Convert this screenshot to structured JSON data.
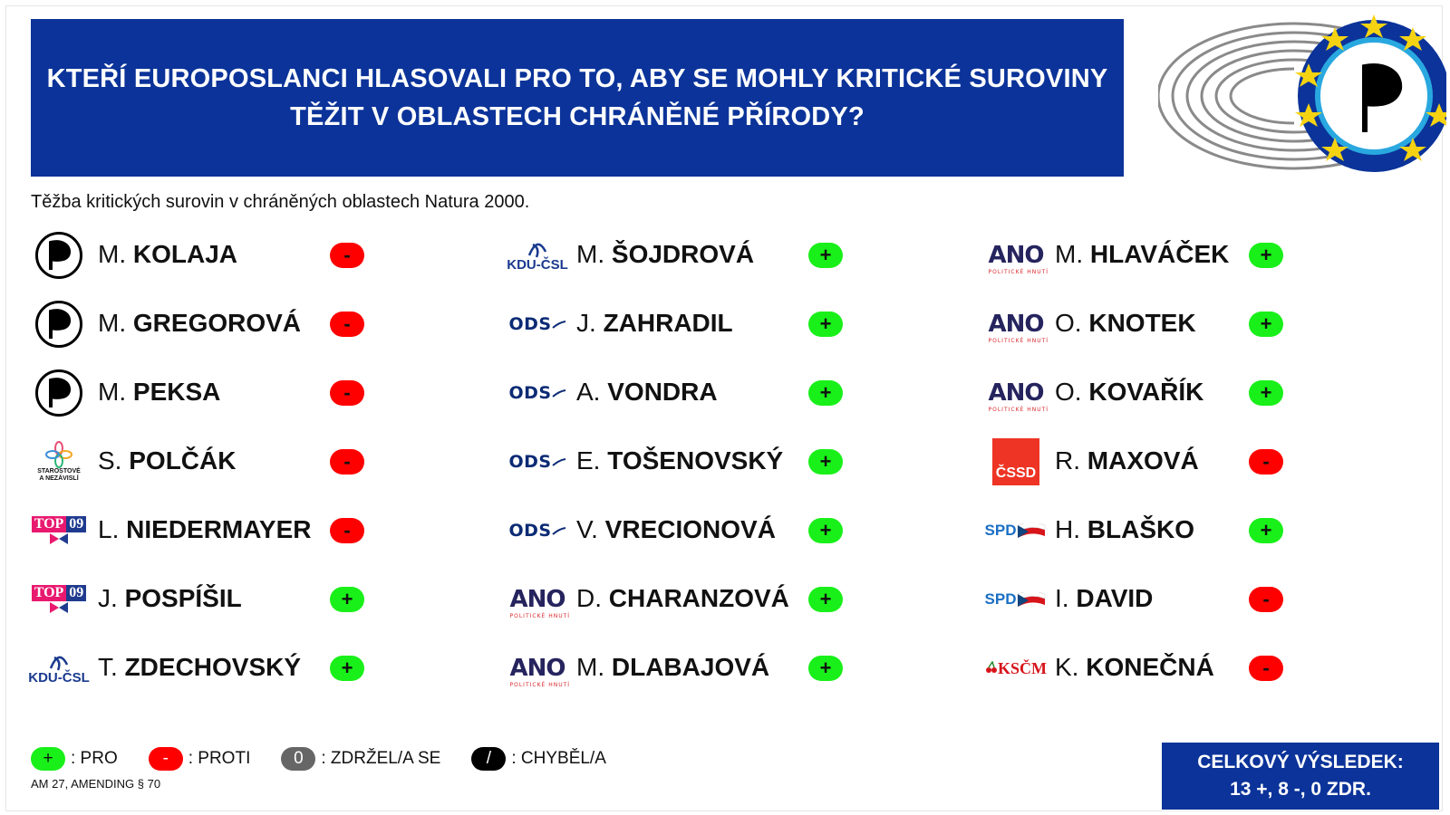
{
  "header": {
    "title_line1": "KTEŘÍ EUROPOSLANCI HLASOVALI PRO TO, ABY SE MOHLY KRITICKÉ SUROVINY",
    "title_line2": "TĚŽIT V OBLASTECH CHRÁNĚNÉ PŘÍRODY?",
    "subtitle": "Těžba kritických surovin v chráněných oblastech Natura 2000."
  },
  "columns": [
    [
      {
        "initial": "M.",
        "surname": "KOLAJA",
        "party": "pirati",
        "vote": "-"
      },
      {
        "initial": "M.",
        "surname": "GREGOROVÁ",
        "party": "pirati",
        "vote": "-"
      },
      {
        "initial": "M.",
        "surname": "PEKSA",
        "party": "pirati",
        "vote": "-"
      },
      {
        "initial": "S.",
        "surname": "POLČÁK",
        "party": "stan",
        "vote": "-"
      },
      {
        "initial": "L.",
        "surname": "NIEDERMAYER",
        "party": "top09",
        "vote": "-"
      },
      {
        "initial": "J.",
        "surname": "POSPÍŠIL",
        "party": "top09",
        "vote": "+"
      },
      {
        "initial": "T.",
        "surname": "ZDECHOVSKÝ",
        "party": "kdu",
        "vote": "+"
      }
    ],
    [
      {
        "initial": "M.",
        "surname": "ŠOJDROVÁ",
        "party": "kdu",
        "vote": "+"
      },
      {
        "initial": "J.",
        "surname": "ZAHRADIL",
        "party": "ods",
        "vote": "+"
      },
      {
        "initial": "A.",
        "surname": "VONDRA",
        "party": "ods",
        "vote": "+"
      },
      {
        "initial": "E.",
        "surname": "TOŠENOVSKÝ",
        "party": "ods",
        "vote": "+"
      },
      {
        "initial": "V.",
        "surname": "VRECIONOVÁ",
        "party": "ods",
        "vote": "+"
      },
      {
        "initial": "D.",
        "surname": "CHARANZOVÁ",
        "party": "ano",
        "vote": "+"
      },
      {
        "initial": "M.",
        "surname": "DLABAJOVÁ",
        "party": "ano",
        "vote": "+"
      }
    ],
    [
      {
        "initial": "M.",
        "surname": "HLAVÁČEK",
        "party": "ano",
        "vote": "+"
      },
      {
        "initial": "O.",
        "surname": "KNOTEK",
        "party": "ano",
        "vote": "+"
      },
      {
        "initial": "O.",
        "surname": "KOVAŘÍK",
        "party": "ano",
        "vote": "+"
      },
      {
        "initial": "R.",
        "surname": "MAXOVÁ",
        "party": "cssd",
        "vote": "-"
      },
      {
        "initial": "H.",
        "surname": "BLAŠKO",
        "party": "spd",
        "vote": "+"
      },
      {
        "initial": "I.",
        "surname": "DAVID",
        "party": "spd",
        "vote": "-"
      },
      {
        "initial": "K.",
        "surname": "KONEČNÁ",
        "party": "kscm",
        "vote": "-"
      }
    ]
  ],
  "party_labels": {
    "ano": "ANO",
    "ano_sub": "POLITICKÉ HNUTÍ",
    "ods": "ODS",
    "kdu": "KDU-ČSL",
    "top09_a": "TOP",
    "top09_b": "09",
    "cssd": "ČSSD",
    "spd": "SPD",
    "kscm": "KSČM",
    "stan_1": "STAROSTOVÉ",
    "stan_2": "A NEZÁVISLÍ"
  },
  "legend": [
    {
      "symbol": "+",
      "label": ": PRO",
      "kind": "pro"
    },
    {
      "symbol": "-",
      "label": ": PROTI",
      "kind": "proti"
    },
    {
      "symbol": "0",
      "label": ": ZDRŽEL/A SE",
      "kind": "zdr"
    },
    {
      "symbol": "/",
      "label": ": CHYBĚL/A",
      "kind": "chyb"
    }
  ],
  "note": "AM 27, AMENDING § 70",
  "result": {
    "line1": "CELKOVÝ VÝSLEDEK:",
    "line2": "13 +, 8 -, 0 ZDR."
  },
  "colors": {
    "header_blue": "#0b3399",
    "pro_green": "#19f019",
    "proti_red": "#ff0000"
  },
  "icons": {
    "ep_logo": "european-parliament-pirate-emblem-icon",
    "pirate": "pirate-flag-icon"
  }
}
